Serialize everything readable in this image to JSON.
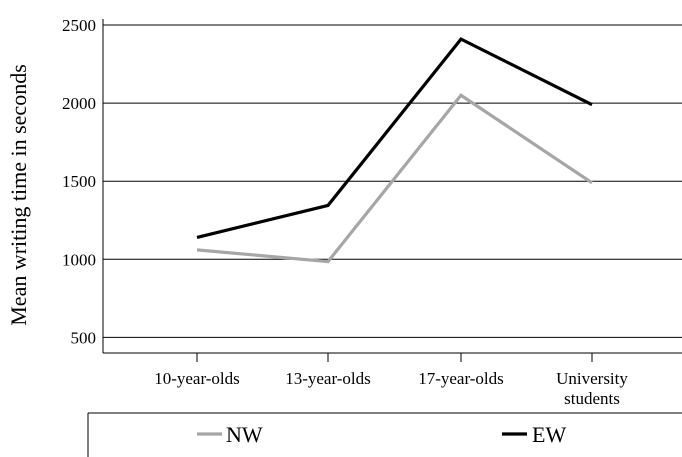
{
  "chart_data": {
    "type": "line",
    "title": "",
    "xlabel": "",
    "ylabel": "Mean writing time in seconds",
    "categories": [
      [
        "10-year-olds"
      ],
      [
        "13-year-olds"
      ],
      [
        "17-year-olds"
      ],
      [
        "University",
        "students"
      ]
    ],
    "yticks": [
      500,
      1000,
      1500,
      2000,
      2500
    ],
    "ylim": [
      400,
      2500
    ],
    "grid": "horizontal",
    "legend_position": "bottom",
    "series": [
      {
        "name": "NW",
        "color": "#a6a6a6",
        "values": [
          1060,
          985,
          2050,
          1490
        ]
      },
      {
        "name": "EW",
        "color": "#000000",
        "values": [
          1140,
          1345,
          2410,
          1990
        ]
      }
    ]
  }
}
